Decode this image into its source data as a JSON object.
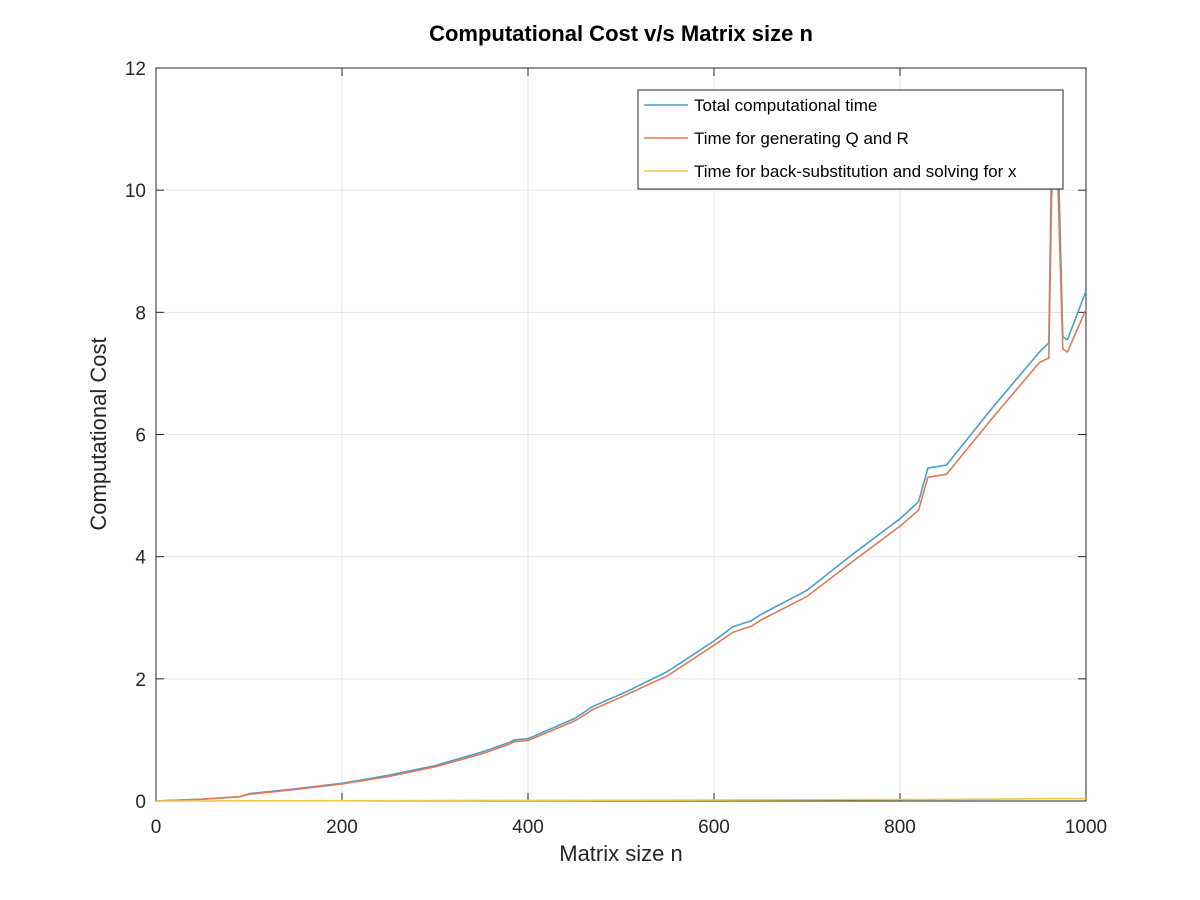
{
  "chart_data": {
    "type": "line",
    "title": "Computational Cost v/s Matrix size n",
    "xlabel": "Matrix size n",
    "ylabel": "Computational Cost",
    "xlim": [
      0,
      1000
    ],
    "ylim": [
      0,
      12
    ],
    "xticks": [
      "0",
      "200",
      "400",
      "600",
      "800",
      "1000"
    ],
    "yticks": [
      "0",
      "2",
      "4",
      "6",
      "8",
      "10",
      "12"
    ],
    "grid": true,
    "legend_position": "top-right",
    "series": [
      {
        "name": "Total computational time",
        "color": "#4a9ec7",
        "x": [
          0,
          50,
          90,
          100,
          150,
          200,
          250,
          300,
          350,
          380,
          385,
          400,
          450,
          470,
          500,
          510,
          550,
          570,
          600,
          620,
          640,
          650,
          700,
          750,
          800,
          820,
          830,
          850,
          900,
          950,
          960,
          963,
          966,
          970,
          975,
          980,
          1000
        ],
        "y": [
          0,
          0.03,
          0.07,
          0.12,
          0.2,
          0.29,
          0.42,
          0.58,
          0.8,
          0.96,
          1.0,
          1.02,
          1.35,
          1.55,
          1.75,
          1.82,
          2.12,
          2.32,
          2.62,
          2.85,
          2.95,
          3.05,
          3.45,
          4.05,
          4.62,
          4.9,
          5.45,
          5.5,
          6.45,
          7.35,
          7.5,
          10.5,
          11.0,
          10.6,
          7.6,
          7.55,
          8.35
        ]
      },
      {
        "name": "Time for generating Q and R",
        "color": "#e07a56",
        "x": [
          0,
          50,
          90,
          100,
          150,
          200,
          250,
          300,
          350,
          380,
          385,
          400,
          450,
          470,
          500,
          510,
          550,
          570,
          600,
          620,
          640,
          650,
          700,
          750,
          800,
          820,
          830,
          850,
          900,
          950,
          960,
          963,
          966,
          970,
          975,
          980,
          1000
        ],
        "y": [
          0,
          0.03,
          0.07,
          0.11,
          0.19,
          0.28,
          0.4,
          0.56,
          0.77,
          0.93,
          0.97,
          0.99,
          1.31,
          1.5,
          1.7,
          1.77,
          2.05,
          2.25,
          2.55,
          2.76,
          2.86,
          2.96,
          3.35,
          3.93,
          4.5,
          4.76,
          5.3,
          5.35,
          6.28,
          7.18,
          7.25,
          9.9,
          10.5,
          10.0,
          7.4,
          7.35,
          8.05
        ]
      },
      {
        "name": "Time for back-substitution and solving for x",
        "color": "#ecc94b",
        "x": [
          0,
          200,
          400,
          600,
          800,
          900,
          960,
          1000
        ],
        "y": [
          0,
          0.005,
          0.01,
          0.015,
          0.025,
          0.03,
          0.04,
          0.04
        ]
      }
    ]
  }
}
